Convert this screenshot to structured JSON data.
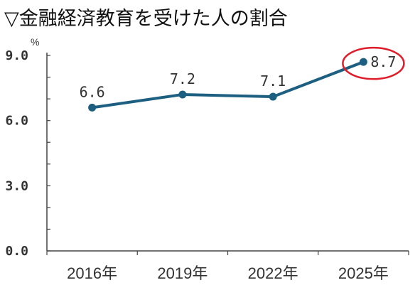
{
  "chart_data": {
    "type": "line",
    "title": "▽金融経済教育を受けた人の割合",
    "unit_label": "%",
    "categories": [
      "2016年",
      "2019年",
      "2022年",
      "2025年"
    ],
    "series": [
      {
        "values": [
          6.6,
          7.2,
          7.1,
          8.7
        ],
        "labels": [
          "6.6",
          "7.2",
          "7.1",
          "8.7"
        ]
      }
    ],
    "y_ticks": [
      "0.0",
      "3.0",
      "6.0",
      "9.0"
    ],
    "ylim": [
      0,
      9
    ],
    "grid": false,
    "highlighted_point": "2025年",
    "colors": {
      "line": "#1c5f80",
      "highlight_ring": "#e01b2a",
      "axis": "#444444"
    }
  }
}
